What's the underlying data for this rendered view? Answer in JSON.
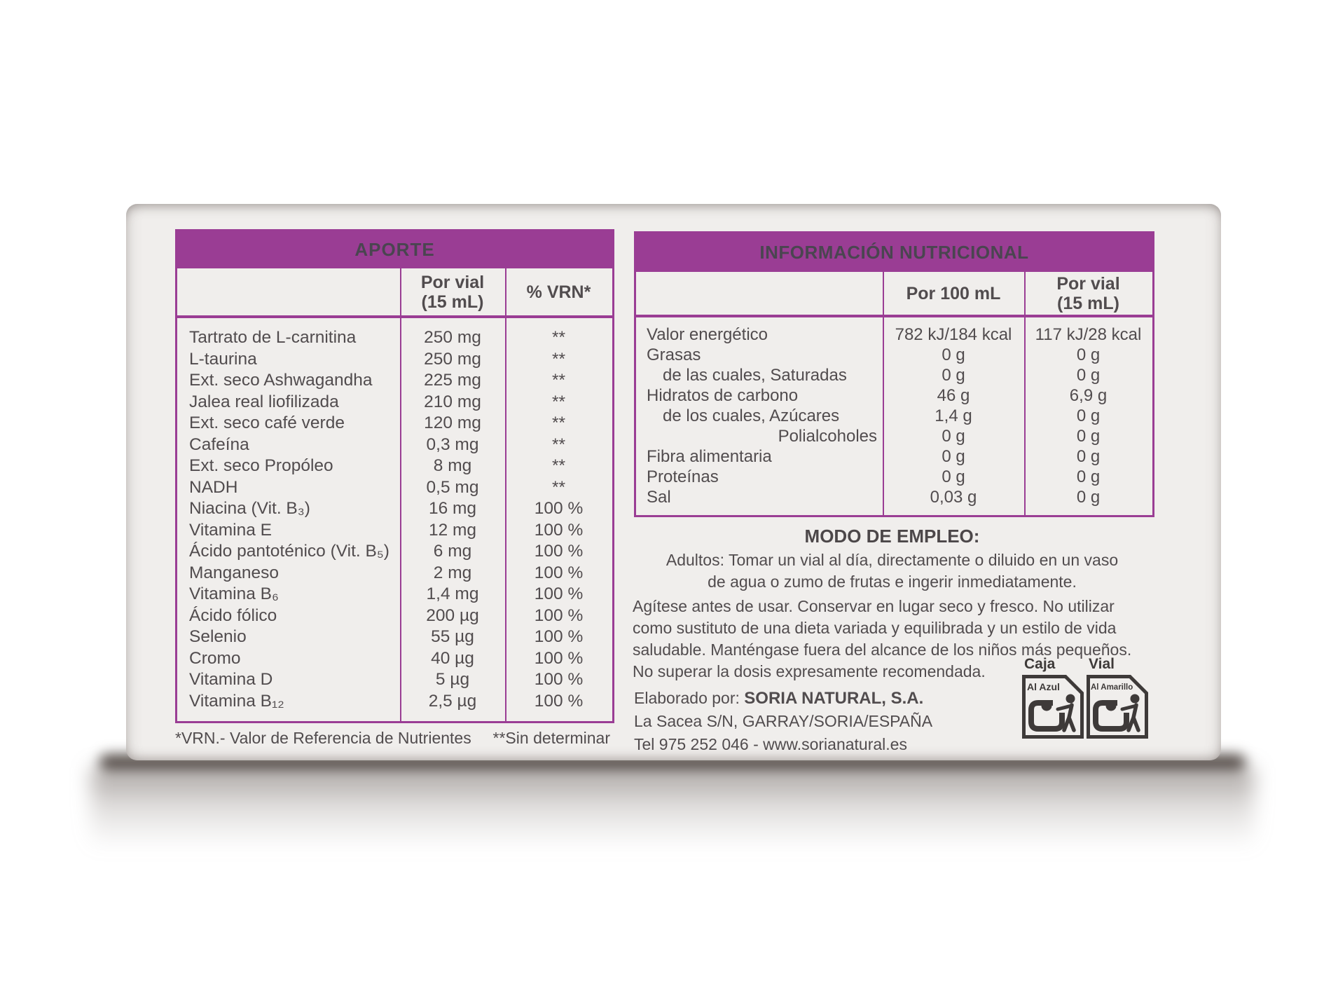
{
  "colors": {
    "purple": "#9a3d94",
    "text": "#514c4e",
    "icon": "#3e3a39",
    "box_face": "#f0eeec"
  },
  "aporte_table": {
    "title": "APORTE",
    "per_vial_header_line1": "Por vial",
    "per_vial_header_line2": "(15 mL)",
    "vrn_header": "% VRN*",
    "rows": [
      {
        "label": "Tartrato de L-carnitina",
        "amount": "250 mg",
        "vrn": "**"
      },
      {
        "label": "L-taurina",
        "amount": "250 mg",
        "vrn": "**"
      },
      {
        "label": "Ext. seco Ashwagandha",
        "amount": "225 mg",
        "vrn": "**"
      },
      {
        "label": "Jalea real liofilizada",
        "amount": "210 mg",
        "vrn": "**"
      },
      {
        "label": "Ext. seco café verde",
        "amount": "120 mg",
        "vrn": "**"
      },
      {
        "label": "Cafeína",
        "amount": "0,3 mg",
        "vrn": "**"
      },
      {
        "label": "Ext. seco Propóleo",
        "amount": "8 mg",
        "vrn": "**"
      },
      {
        "label": "NADH",
        "amount": "0,5 mg",
        "vrn": "**"
      },
      {
        "label": "Niacina (Vit. B₃)",
        "amount": "16 mg",
        "vrn": "100 %"
      },
      {
        "label": "Vitamina E",
        "amount": "12 mg",
        "vrn": "100 %"
      },
      {
        "label": "Ácido pantoténico (Vit. B₅)",
        "amount": "6 mg",
        "vrn": "100 %"
      },
      {
        "label": "Manganeso",
        "amount": "2 mg",
        "vrn": "100 %"
      },
      {
        "label": "Vitamina B₆",
        "amount": "1,4 mg",
        "vrn": "100 %"
      },
      {
        "label": "Ácido fólico",
        "amount": "200 µg",
        "vrn": "100 %"
      },
      {
        "label": "Selenio",
        "amount": "55 µg",
        "vrn": "100 %"
      },
      {
        "label": "Cromo",
        "amount": "40 µg",
        "vrn": "100 %"
      },
      {
        "label": "Vitamina D",
        "amount": "5 µg",
        "vrn": "100 %"
      },
      {
        "label": "Vitamina B₁₂",
        "amount": "2,5 µg",
        "vrn": "100 %"
      }
    ],
    "footnote_left": "*VRN.- Valor de Referencia de Nutrientes",
    "footnote_right": "**Sin determinar"
  },
  "nutrition_table": {
    "title": "INFORMACIÓN NUTRICIONAL",
    "per_100ml_header": "Por 100 mL",
    "per_vial_header_line1": "Por vial",
    "per_vial_header_line2": "(15 mL)",
    "rows": [
      {
        "label": "Valor energético",
        "per_100ml": "782 kJ/184 kcal",
        "per_vial": "117 kJ/28 kcal"
      },
      {
        "label": "Grasas",
        "per_100ml": "0 g",
        "per_vial": "0 g"
      },
      {
        "label": "de las cuales, Saturadas",
        "indent": true,
        "per_100ml": "0 g",
        "per_vial": "0 g"
      },
      {
        "label": "Hidratos de carbono",
        "per_100ml": "46 g",
        "per_vial": "6,9 g"
      },
      {
        "label": "de los cuales, Azúcares",
        "indent": true,
        "per_100ml": "1,4 g",
        "per_vial": "0 g"
      },
      {
        "label": "Polialcoholes",
        "align": "right",
        "per_100ml": "0 g",
        "per_vial": "0 g"
      },
      {
        "label": "Fibra alimentaria",
        "per_100ml": "0 g",
        "per_vial": "0 g"
      },
      {
        "label": "Proteínas",
        "per_100ml": "0 g",
        "per_vial": "0 g"
      },
      {
        "label": "Sal",
        "per_100ml": "0,03 g",
        "per_vial": "0 g"
      }
    ]
  },
  "usage": {
    "title": "MODO DE EMPLEO:",
    "dosage_lines": [
      "Adultos: Tomar un vial al día, directamente o diluido en un vaso",
      "de agua o zumo de frutas e ingerir inmediatamente."
    ],
    "warning_lines": [
      "Agítese antes de usar. Conservar en lugar seco y fresco. No utilizar",
      "como sustituto de una dieta variada y equilibrada y un estilo de vida",
      "saludable. Manténgase fuera del alcance de los niños más pequeños.",
      "No superar la dosis expresamente recomendada."
    ]
  },
  "manufacturer": {
    "label": "Elaborado por: ",
    "name": "SORIA NATURAL, S.A.",
    "address": "La Sacea S/N, GARRAY/SORIA/ESPAÑA",
    "contact": "Tel 975 252 046 - www.sorianatural.es"
  },
  "recycling": {
    "box_label": "Caja",
    "vial_label": "Vial",
    "box_bin": "Al Azul",
    "vial_bin": "Al Amarillo"
  }
}
